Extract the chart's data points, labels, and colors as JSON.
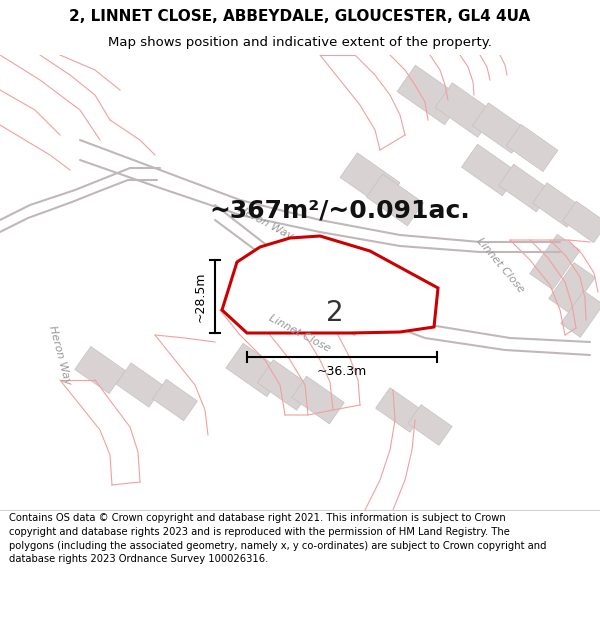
{
  "title_line1": "2, LINNET CLOSE, ABBEYDALE, GLOUCESTER, GL4 4UA",
  "title_line2": "Map shows position and indicative extent of the property.",
  "footer_text": "Contains OS data © Crown copyright and database right 2021. This information is subject to Crown copyright and database rights 2023 and is reproduced with the permission of HM Land Registry. The polygons (including the associated geometry, namely x, y co-ordinates) are subject to Crown copyright and database rights 2023 Ordnance Survey 100026316.",
  "area_label": "~367m²/~0.091ac.",
  "plot_number": "2",
  "dim_height": "~28.5m",
  "dim_width": "~36.3m",
  "map_bg": "#f7f3f3",
  "road_fill": "#f2c8c8",
  "road_edge": "#e8a8a8",
  "building_fill": "#d8d2d2",
  "building_edge": "#c8c0c0",
  "plot_outline_color": "#cc0000",
  "plot_fill_color": "#ffffff",
  "parcel_line_color": "#e8a8a8",
  "street_label_color": "#999999",
  "heron_way_road_color": "#c8c0c0",
  "linnet_close_road_color": "#c8c0c0",
  "title_fontsize": 11,
  "subtitle_fontsize": 9.5,
  "footer_fontsize": 7.2,
  "area_fontsize": 18,
  "number_fontsize": 20,
  "dim_fontsize": 9
}
